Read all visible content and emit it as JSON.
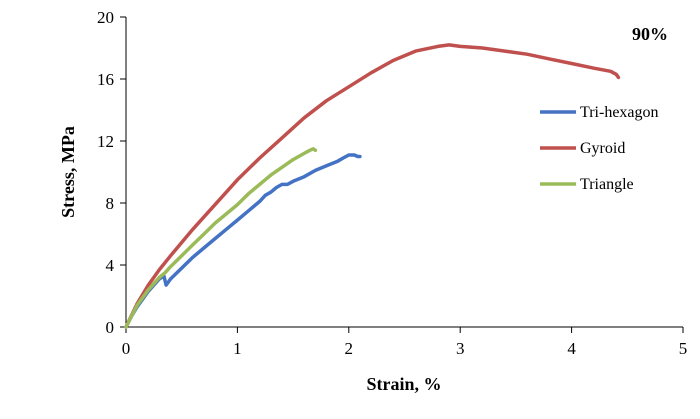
{
  "chart_data": {
    "type": "line",
    "annotation": "90%",
    "xlabel": "Strain, %",
    "ylabel": "Stress, MPa",
    "xlim": [
      0,
      5
    ],
    "ylim": [
      0,
      20
    ],
    "xticks": [
      0,
      1,
      2,
      3,
      4,
      5
    ],
    "yticks": [
      0,
      4,
      8,
      12,
      16,
      20
    ],
    "grid": false,
    "legend_position": "right",
    "series": [
      {
        "name": "Tri-hexagon",
        "color": "#4472C4",
        "points": [
          [
            0.0,
            0.0
          ],
          [
            0.05,
            0.7
          ],
          [
            0.1,
            1.3
          ],
          [
            0.2,
            2.3
          ],
          [
            0.3,
            3.1
          ],
          [
            0.34,
            3.3
          ],
          [
            0.36,
            2.7
          ],
          [
            0.4,
            3.1
          ],
          [
            0.5,
            3.8
          ],
          [
            0.6,
            4.5
          ],
          [
            0.7,
            5.1
          ],
          [
            0.8,
            5.7
          ],
          [
            0.9,
            6.3
          ],
          [
            1.0,
            6.9
          ],
          [
            1.1,
            7.5
          ],
          [
            1.2,
            8.1
          ],
          [
            1.25,
            8.5
          ],
          [
            1.3,
            8.7
          ],
          [
            1.35,
            9.0
          ],
          [
            1.4,
            9.2
          ],
          [
            1.45,
            9.2
          ],
          [
            1.5,
            9.4
          ],
          [
            1.6,
            9.7
          ],
          [
            1.7,
            10.1
          ],
          [
            1.8,
            10.4
          ],
          [
            1.9,
            10.7
          ],
          [
            1.95,
            10.9
          ],
          [
            2.0,
            11.1
          ],
          [
            2.05,
            11.1
          ],
          [
            2.08,
            11.0
          ],
          [
            2.1,
            11.0
          ]
        ]
      },
      {
        "name": "Gyroid",
        "color": "#C0504D",
        "points": [
          [
            0.0,
            0.0
          ],
          [
            0.1,
            1.5
          ],
          [
            0.2,
            2.7
          ],
          [
            0.3,
            3.7
          ],
          [
            0.4,
            4.6
          ],
          [
            0.6,
            6.3
          ],
          [
            0.8,
            7.9
          ],
          [
            1.0,
            9.5
          ],
          [
            1.2,
            10.9
          ],
          [
            1.4,
            12.2
          ],
          [
            1.6,
            13.5
          ],
          [
            1.8,
            14.6
          ],
          [
            2.0,
            15.5
          ],
          [
            2.2,
            16.4
          ],
          [
            2.4,
            17.2
          ],
          [
            2.6,
            17.8
          ],
          [
            2.8,
            18.1
          ],
          [
            2.9,
            18.2
          ],
          [
            3.0,
            18.1
          ],
          [
            3.2,
            18.0
          ],
          [
            3.4,
            17.8
          ],
          [
            3.6,
            17.6
          ],
          [
            3.8,
            17.3
          ],
          [
            4.0,
            17.0
          ],
          [
            4.2,
            16.7
          ],
          [
            4.35,
            16.5
          ],
          [
            4.4,
            16.3
          ],
          [
            4.42,
            16.1
          ]
        ]
      },
      {
        "name": "Triangle",
        "color": "#9BBB59",
        "points": [
          [
            0.0,
            0.0
          ],
          [
            0.1,
            1.4
          ],
          [
            0.2,
            2.4
          ],
          [
            0.3,
            3.2
          ],
          [
            0.35,
            3.5
          ],
          [
            0.4,
            3.9
          ],
          [
            0.5,
            4.6
          ],
          [
            0.6,
            5.3
          ],
          [
            0.7,
            6.0
          ],
          [
            0.8,
            6.7
          ],
          [
            0.9,
            7.3
          ],
          [
            1.0,
            7.9
          ],
          [
            1.1,
            8.6
          ],
          [
            1.2,
            9.2
          ],
          [
            1.3,
            9.8
          ],
          [
            1.4,
            10.3
          ],
          [
            1.5,
            10.8
          ],
          [
            1.6,
            11.2
          ],
          [
            1.65,
            11.4
          ],
          [
            1.68,
            11.5
          ],
          [
            1.7,
            11.4
          ]
        ]
      }
    ]
  }
}
